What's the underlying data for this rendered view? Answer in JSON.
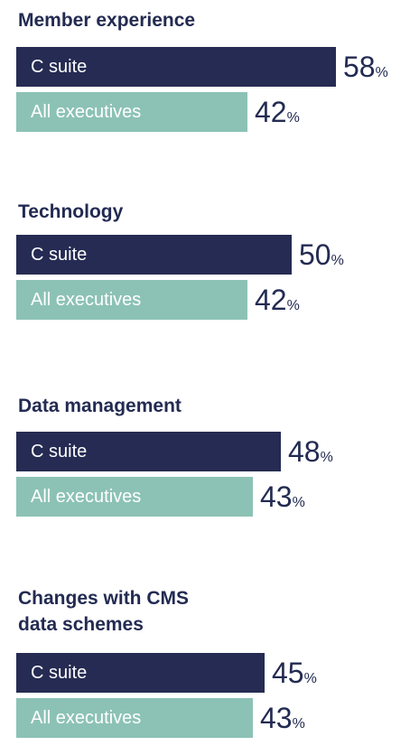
{
  "chart_data": {
    "type": "bar",
    "orientation": "horizontal",
    "unit": "%",
    "series": [
      {
        "name": "C suite",
        "color": "#252b52"
      },
      {
        "name": "All executives",
        "color": "#8cc2b5"
      }
    ],
    "groups": [
      {
        "title": "Member experience",
        "values": [
          58,
          42
        ]
      },
      {
        "title": "Technology",
        "values": [
          50,
          42
        ]
      },
      {
        "title": "Data management",
        "values": [
          48,
          43
        ]
      },
      {
        "title": "Changes with CMS\ndata schemes",
        "values": [
          45,
          43
        ]
      }
    ]
  }
}
